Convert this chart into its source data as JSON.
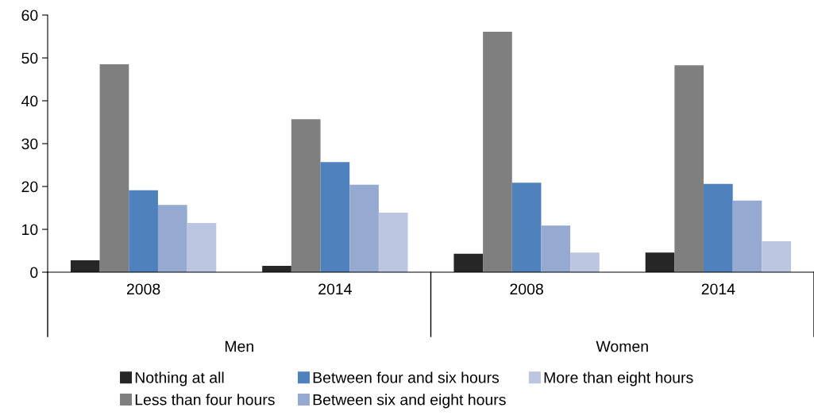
{
  "chart_data": {
    "type": "bar",
    "categories": [
      "2008",
      "2014",
      "2008",
      "2014"
    ],
    "series": [
      {
        "name": "Nothing at all",
        "color": "#262626",
        "values": [
          2.8,
          1.5,
          4.3,
          4.6
        ]
      },
      {
        "name": "Less than four hours",
        "color": "#7f7f7f",
        "values": [
          48.5,
          35.7,
          56.1,
          48.3
        ]
      },
      {
        "name": "Between four and six hours",
        "color": "#4f81bd",
        "values": [
          19.1,
          25.7,
          20.9,
          20.6
        ]
      },
      {
        "name": "Between six and eight hours",
        "color": "#95a9d1",
        "values": [
          15.7,
          20.4,
          10.9,
          16.7
        ]
      },
      {
        "name": "More than eight hours",
        "color": "#bcc6e0",
        "values": [
          11.5,
          13.9,
          4.6,
          7.2
        ]
      }
    ],
    "annotations": [
      "Men",
      "Women"
    ],
    "ylim": [
      0,
      60
    ],
    "yticks": [
      0,
      10,
      20,
      30,
      40,
      50,
      60
    ],
    "grid": false,
    "legend": "bottom"
  }
}
